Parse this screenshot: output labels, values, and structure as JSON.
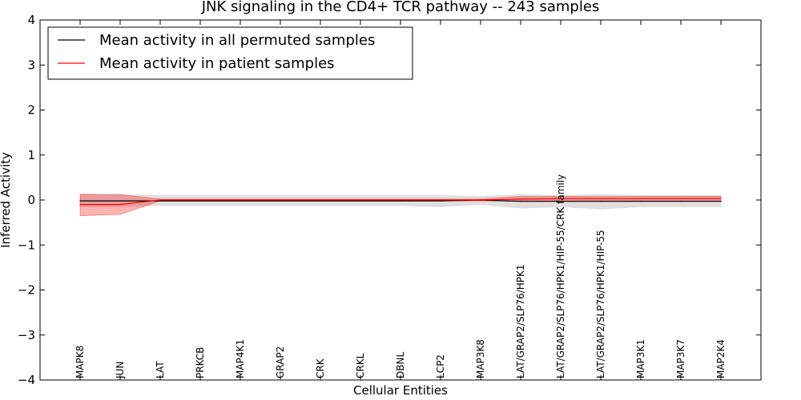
{
  "chart_data": {
    "type": "line",
    "title": "JNK signaling in the CD4+ TCR pathway -- 243 samples",
    "xlabel": "Cellular Entities",
    "ylabel": "Inferred Activity",
    "ylim": [
      -4,
      4
    ],
    "yticks": [
      {
        "value": 4,
        "label": "4"
      },
      {
        "value": 3,
        "label": "3"
      },
      {
        "value": 2,
        "label": "2"
      },
      {
        "value": 1,
        "label": "1"
      },
      {
        "value": 0,
        "label": "0"
      },
      {
        "value": -1,
        "label": "−1"
      },
      {
        "value": -2,
        "label": "−2"
      },
      {
        "value": -3,
        "label": "−3"
      },
      {
        "value": -4,
        "label": "−4"
      }
    ],
    "categories": [
      "MAPK8",
      "JUN",
      "LAT",
      "PRKCB",
      "MAP4K1",
      "GRAP2",
      "CRK",
      "CRKL",
      "DBNL",
      "LCP2",
      "MAP3K8",
      "LAT/GRAP2/SLP76/HPK1",
      "LAT/GRAP2/SLP76/HPK1/HIP-55/CRK family",
      "LAT/GRAP2/SLP76/HPK1/HIP-55",
      "MAP3K1",
      "MAP3K7",
      "MAP2K4"
    ],
    "legend_position": "top-left",
    "series": [
      {
        "name": "Mean activity in all permuted samples",
        "color": "#000000",
        "values": [
          -0.02,
          -0.02,
          -0.02,
          -0.02,
          -0.02,
          -0.02,
          -0.02,
          -0.02,
          -0.02,
          -0.02,
          0.0,
          -0.03,
          -0.03,
          -0.03,
          -0.03,
          -0.03,
          -0.03
        ],
        "band_upper": [
          0.12,
          0.12,
          0.1,
          0.1,
          0.1,
          0.1,
          0.1,
          0.1,
          0.1,
          0.1,
          0.08,
          0.12,
          0.1,
          0.12,
          0.1,
          0.1,
          0.1
        ],
        "band_lower": [
          -0.15,
          -0.15,
          -0.12,
          -0.12,
          -0.12,
          -0.12,
          -0.12,
          -0.12,
          -0.12,
          -0.15,
          -0.1,
          -0.18,
          -0.15,
          -0.2,
          -0.15,
          -0.15,
          -0.15
        ],
        "band_color": "#bbbbbb"
      },
      {
        "name": "Mean activity in patient samples",
        "color": "#ff0000",
        "values": [
          -0.1,
          -0.1,
          0.0,
          0.0,
          0.0,
          0.0,
          0.0,
          0.0,
          0.0,
          0.0,
          0.0,
          0.02,
          0.03,
          0.03,
          0.03,
          0.03,
          0.03
        ],
        "band_upper": [
          0.13,
          0.12,
          0.02,
          0.02,
          0.02,
          0.02,
          0.02,
          0.02,
          0.02,
          0.02,
          0.02,
          0.08,
          0.08,
          0.08,
          0.08,
          0.08,
          0.08
        ],
        "band_lower": [
          -0.35,
          -0.32,
          -0.02,
          -0.02,
          -0.02,
          -0.02,
          -0.02,
          -0.02,
          -0.02,
          -0.02,
          -0.02,
          -0.02,
          -0.02,
          -0.02,
          -0.02,
          -0.02,
          -0.02
        ],
        "band_color": "#ff0000"
      }
    ]
  }
}
